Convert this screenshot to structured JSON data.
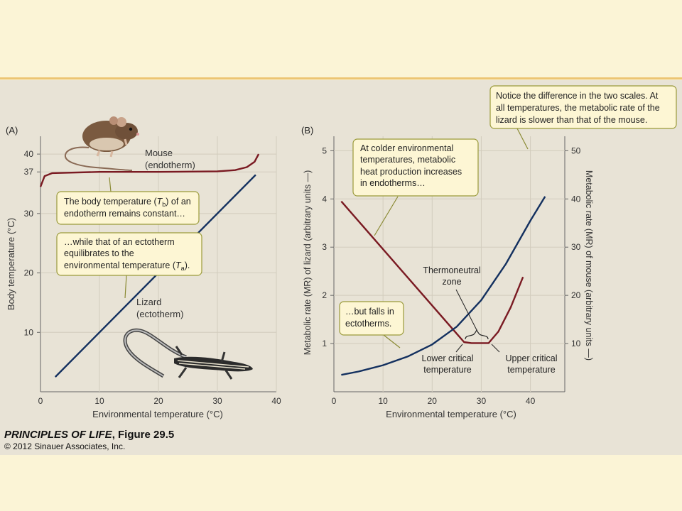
{
  "slide": {
    "caption_book": "PRINCIPLES OF LIFE",
    "caption_fig": ", Figure 29.5",
    "copyright": "© 2012 Sinauer Associates, Inc."
  },
  "colors": {
    "band": "#fbf4d6",
    "panel": "#e8e3d6",
    "endotherm": "#7a1a22",
    "ectotherm": "#13305f",
    "callout": "#fdf6d4",
    "callout_border": "#9a9a3a"
  },
  "icons": [
    "mouse-illustration",
    "lizard-illustration"
  ],
  "chart_data": [
    {
      "type": "line",
      "panel_label": "(A)",
      "xlabel": "Environmental temperature (°C)",
      "ylabel": "Body temperature (°C)",
      "xlim": [
        0,
        40
      ],
      "ylim": [
        0,
        43
      ],
      "x_ticks": [
        "0",
        "10",
        "20",
        "30",
        "40"
      ],
      "y_ticks": [
        "10",
        "20",
        "30",
        "37",
        "40"
      ],
      "series": [
        {
          "name": "Mouse (endotherm)",
          "label_line1": "Mouse",
          "label_line2": "(endotherm)",
          "points": [
            [
              0,
              34.5
            ],
            [
              0.7,
              36.3
            ],
            [
              2,
              36.8
            ],
            [
              10,
              37
            ],
            [
              20,
              37
            ],
            [
              30,
              37.1
            ],
            [
              33,
              37.3
            ],
            [
              35,
              37.8
            ],
            [
              36.3,
              38.7
            ],
            [
              37,
              40
            ]
          ]
        },
        {
          "name": "Lizard (ectotherm)",
          "label_line1": "Lizard",
          "label_line2": "(ectotherm)",
          "points": [
            [
              2.5,
              2.5
            ],
            [
              36.5,
              36.5
            ]
          ]
        }
      ],
      "annotations": {
        "tb_line1": "The body temperature (",
        "tb_T": "T",
        "tb_sub": "b",
        "tb_line1_end": ") of an",
        "tb_line2": "endotherm remains constant…",
        "ta_line1": "…while that of an ectotherm",
        "ta_line2": "equilibrates to the",
        "ta_line3": "environmental temperature (",
        "ta_T": "T",
        "ta_sub": "a",
        "ta_line3_end": ")."
      }
    },
    {
      "type": "line",
      "panel_label": "(B)",
      "xlabel": "Environmental temperature (°C)",
      "ylabel_left": "Metabolic rate (MR) of lizard (arbitrary units —)",
      "ylabel_right": "Metabolic rate (MR) of mouse (arbitrary units —)",
      "xlim": [
        0,
        47
      ],
      "ylim_left": [
        0,
        5.3
      ],
      "ylim_right": [
        0,
        53
      ],
      "x_ticks": [
        "0",
        "10",
        "20",
        "30",
        "40"
      ],
      "y_ticks_left": [
        "1",
        "2",
        "3",
        "4",
        "5"
      ],
      "y_ticks_right": [
        "10",
        "20",
        "30",
        "40",
        "50"
      ],
      "series": [
        {
          "name": "Mouse MR",
          "axis": "right",
          "points": [
            [
              1.5,
              39.5
            ],
            [
              26.5,
              10.3
            ],
            [
              28,
              10.1
            ],
            [
              31.5,
              10.1
            ],
            [
              33.5,
              12.5
            ],
            [
              36,
              17.5
            ],
            [
              38.5,
              23.8
            ]
          ]
        },
        {
          "name": "Lizard MR",
          "axis": "left",
          "points": [
            [
              1.5,
              0.35
            ],
            [
              5,
              0.42
            ],
            [
              10,
              0.55
            ],
            [
              15,
              0.73
            ],
            [
              20,
              0.98
            ],
            [
              25,
              1.35
            ],
            [
              30,
              1.9
            ],
            [
              35,
              2.65
            ],
            [
              40,
              3.55
            ],
            [
              43,
              4.05
            ]
          ]
        }
      ],
      "annotations": {
        "cold_line1": "At colder environmental",
        "cold_line2": "temperatures, metabolic",
        "cold_line3": "heat production increases",
        "cold_line4": "in endotherms…",
        "falls_line1": "…but falls in",
        "falls_line2": "ectotherms.",
        "zone_line1": "Thermoneutral",
        "zone_line2": "zone",
        "lower_line1": "Lower critical",
        "lower_line2": "temperature",
        "upper_line1": "Upper critical",
        "upper_line2": "temperature",
        "notice_line1": "Notice the difference in the two scales. At",
        "notice_line2": "all temperatures, the metabolic rate of the",
        "notice_line3": "lizard is slower than that of the mouse."
      }
    }
  ]
}
